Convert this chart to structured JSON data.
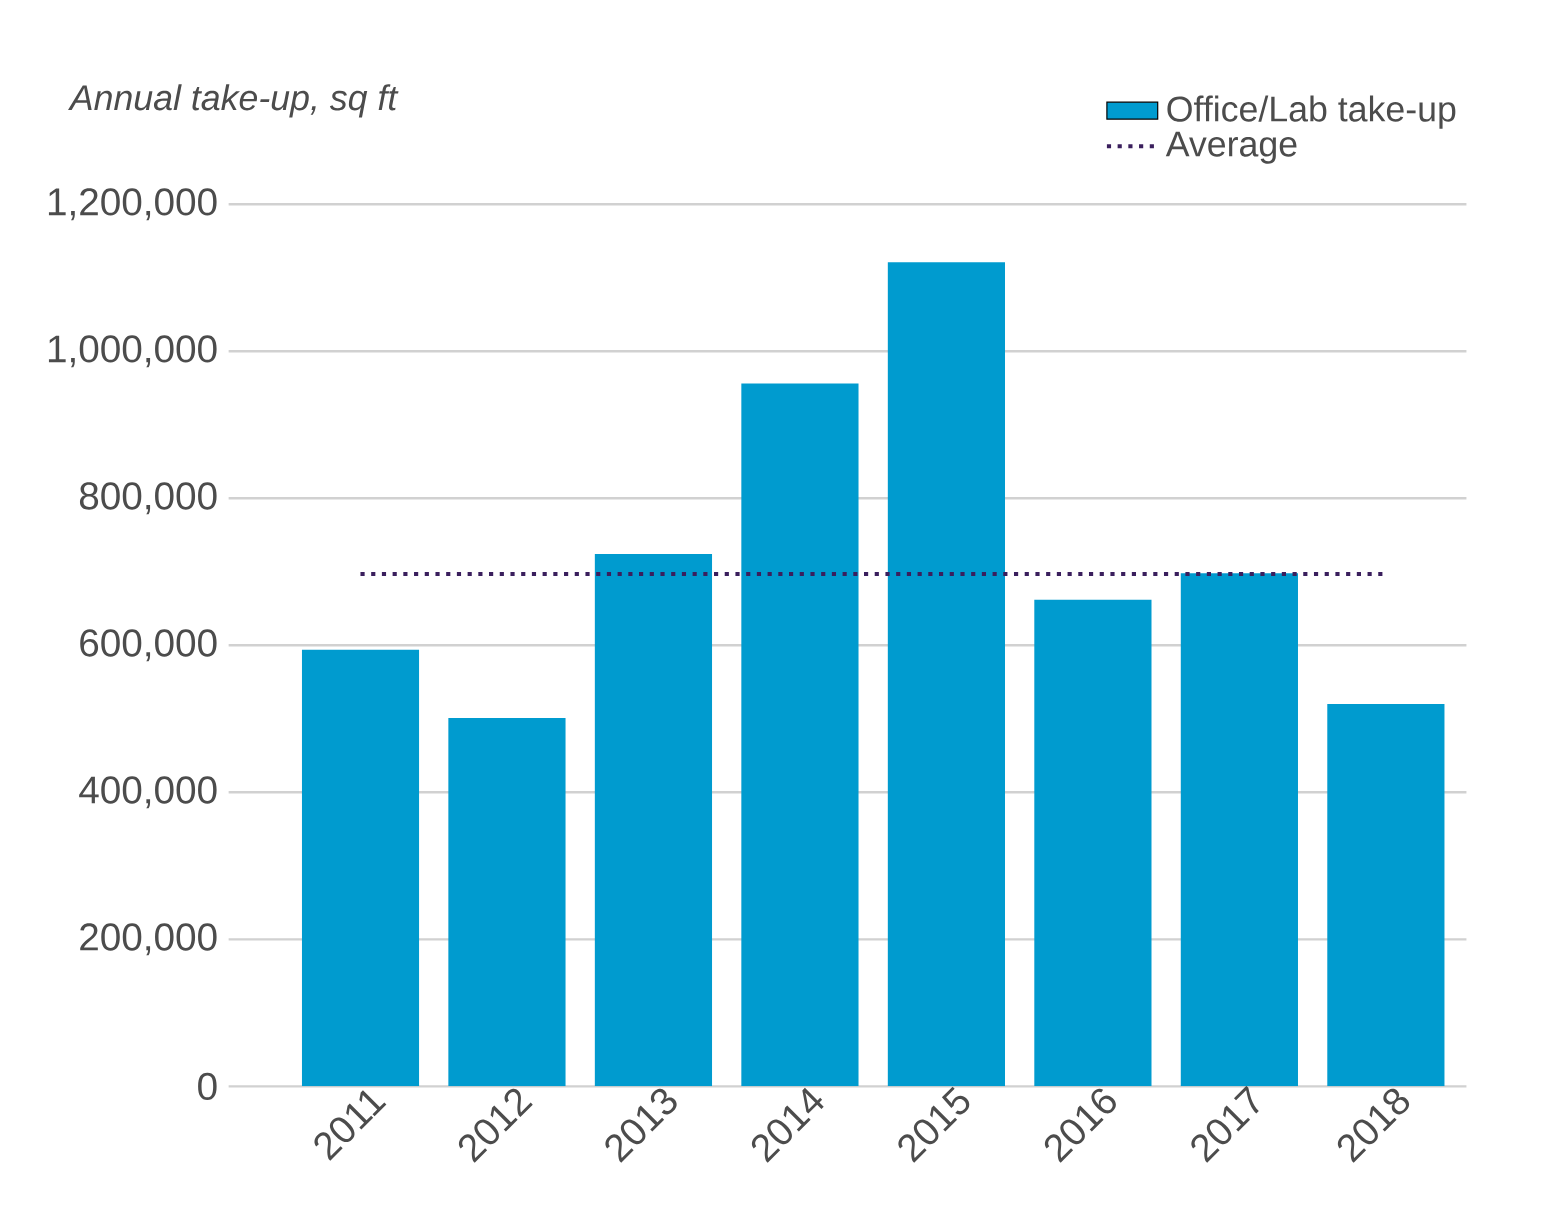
{
  "chart_data": {
    "type": "bar",
    "ylabel": "Annual take-up, sq ft",
    "categories": [
      "2011",
      "2012",
      "2013",
      "2014",
      "2015",
      "2016",
      "2017",
      "2018"
    ],
    "series": [
      {
        "name": "Office/Lab take-up",
        "color": "#009bcf",
        "values": [
          594000,
          501000,
          724000,
          956000,
          1121000,
          662000,
          698000,
          520000
        ]
      },
      {
        "name": "Average",
        "type": "line",
        "line_style": "dotted",
        "color": "#3a1f5d",
        "values": [
          697000,
          697000,
          697000,
          697000,
          697000,
          697000,
          697000,
          697000
        ]
      }
    ],
    "ylim": [
      0,
      1200000
    ],
    "yticks": [
      {
        "value": 0,
        "label": "0"
      },
      {
        "value": 200000,
        "label": "200,000"
      },
      {
        "value": 400000,
        "label": "400,000"
      },
      {
        "value": 600000,
        "label": "600,000"
      },
      {
        "value": 800000,
        "label": "800,000"
      },
      {
        "value": 1000000,
        "label": "1,000,000"
      },
      {
        "value": 1200000,
        "label": "1,200,000"
      }
    ],
    "grid": "y",
    "legend": "top right"
  }
}
